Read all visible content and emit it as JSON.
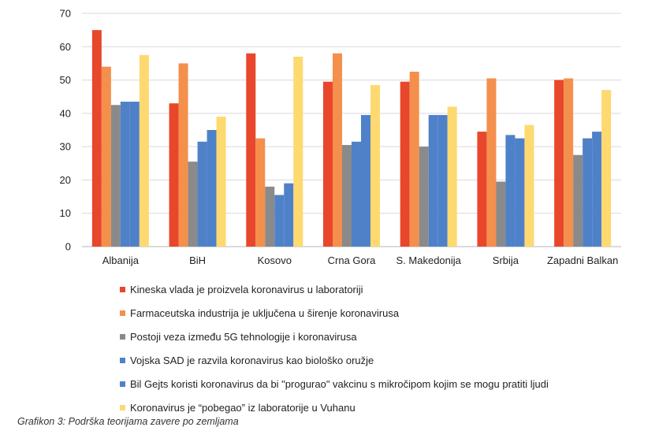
{
  "chart_data": {
    "type": "bar",
    "title": "",
    "xlabel": "",
    "ylabel": "",
    "ylim": [
      0,
      70
    ],
    "yticks": [
      0,
      10,
      20,
      30,
      40,
      50,
      60,
      70
    ],
    "grid": true,
    "legend_position": "bottom",
    "categories": [
      "Albanija",
      "BiH",
      "Kosovo",
      "Crna Gora",
      "S. Makedonija",
      "Srbija",
      "Zapadni Balkan"
    ],
    "series": [
      {
        "name": "Kineska vlada je proizvela koronavirus u laboratoriji",
        "color": "#e8472c",
        "values": [
          65,
          43,
          58,
          49.5,
          49.5,
          34.5,
          50
        ]
      },
      {
        "name": "Farmaceutska industrija je uključena u širenje koronavirusa",
        "color": "#f48f4c",
        "values": [
          54,
          55,
          32.5,
          58,
          52.5,
          50.5,
          50.5
        ]
      },
      {
        "name": "Postoji veza između 5G tehnologije i koronavirusa",
        "color": "#8a8a8a",
        "values": [
          42.5,
          25.5,
          18,
          30.5,
          30,
          19.5,
          27.5
        ]
      },
      {
        "name": "Vojska SAD je razvila koronavirus kao biološko oružje",
        "color": "#4f81c9",
        "values": [
          43.5,
          31.5,
          15.5,
          31.5,
          39.5,
          33.5,
          32.5
        ]
      },
      {
        "name": "Bil Gejts koristi koronavirus da bi \"progurao\" vakcinu s mikročipom kojim se mogu pratiti ljudi",
        "color": "#4f81c9",
        "values": [
          43.5,
          35,
          19,
          39.5,
          39.5,
          32.5,
          34.5
        ]
      },
      {
        "name": "Koronavirus je “pobegao” iz laboratorije u Vuhanu",
        "color": "#fdd970",
        "values": [
          57.5,
          39,
          57,
          48.5,
          42,
          36.5,
          47
        ]
      }
    ]
  },
  "caption": "Grafikon 3: Podrška teorijama zavere po zemljama"
}
